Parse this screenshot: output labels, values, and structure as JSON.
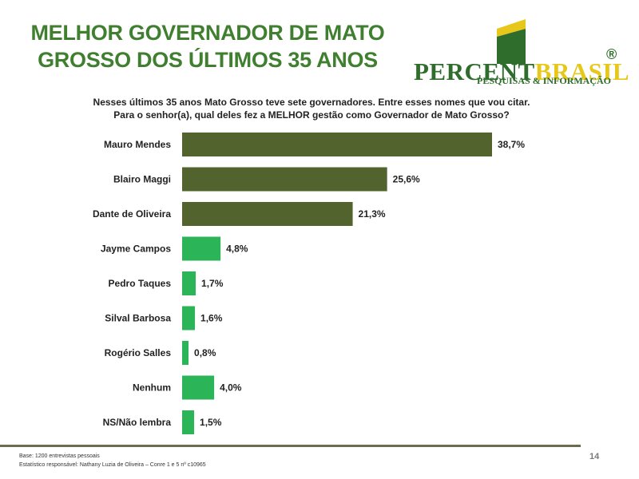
{
  "title": {
    "line1": "MELHOR GOVERNADOR DE MATO",
    "line2": "GROSSO DOS ÚLTIMOS 35 ANOS"
  },
  "logo": {
    "word_part1": "PERCENT",
    "word_part2": "BRASIL",
    "registered": "®",
    "tagline": "PESQUISAS & INFORMAÇÃO"
  },
  "question": {
    "line1": "Nesses últimos 35 anos Mato Grosso teve sete governadores. Entre esses nomes que vou citar.",
    "line2": "Para o senhor(a), qual deles fez a MELHOR gestão como Governador de Mato Grosso?"
  },
  "colors": {
    "title": "#3f7f2f",
    "bar_top": "#53632d",
    "bar_other": "#2cb558",
    "label": "#222222"
  },
  "chart_data": {
    "type": "bar",
    "orientation": "horizontal",
    "title": "MELHOR GOVERNADOR DE MATO GROSSO DOS ÚLTIMOS 35 ANOS",
    "categories": [
      "Mauro Mendes",
      "Blairo Maggi",
      "Dante de Oliveira",
      "Jayme Campos",
      "Pedro Taques",
      "Silval Barbosa",
      "Rogério Salles",
      "Nenhum",
      "NS/Não lembra"
    ],
    "values": [
      38.7,
      25.6,
      21.3,
      4.8,
      1.7,
      1.6,
      0.8,
      4.0,
      1.5
    ],
    "value_labels": [
      "38,7%",
      "25,6%",
      "21,3%",
      "4,8%",
      "1,7%",
      "1,6%",
      "0,8%",
      "4,0%",
      "1,5%"
    ],
    "highlight_top": 3,
    "unit": "%",
    "xlim": [
      0,
      40
    ],
    "grid": false,
    "xlabel": "",
    "ylabel": ""
  },
  "footer": {
    "base": "Base: 1200 entrevistas pessoais",
    "statistician": "Estatístico responsável: Nathany Luzia de Oliveira – Conre 1 e 5 nº c10965",
    "page_number": "14"
  }
}
